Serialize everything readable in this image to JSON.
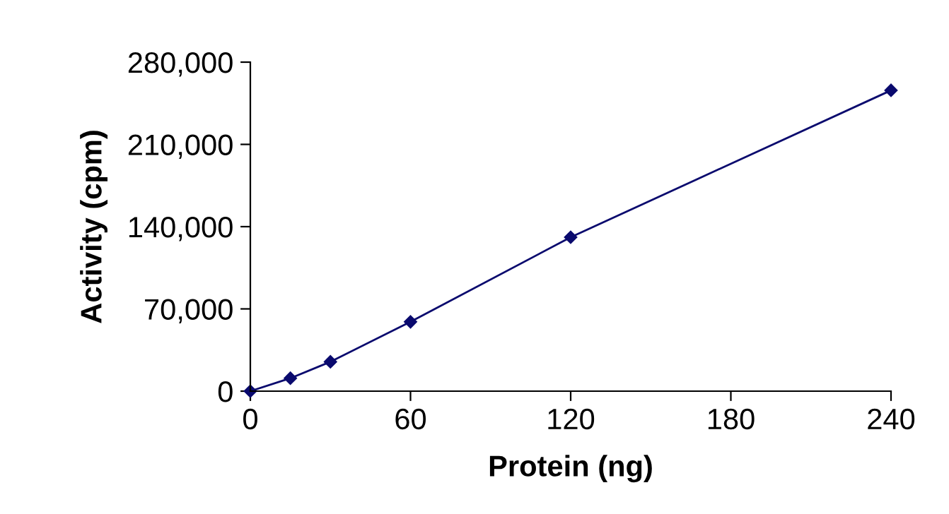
{
  "chart_data": {
    "type": "line",
    "xlabel": "Protein (ng)",
    "ylabel": "Activity (cpm)",
    "x": [
      0,
      15,
      30,
      60,
      120,
      240
    ],
    "series": [
      {
        "color": "#0a0a6e",
        "values": [
          0,
          11000,
          25000,
          59000,
          131000,
          256000
        ]
      }
    ],
    "xlim": [
      0,
      240
    ],
    "xticks": [
      0,
      60,
      120,
      180,
      240
    ],
    "ylim": [
      0,
      280000
    ],
    "yticks": [
      {
        "value": 0,
        "label": "0"
      },
      {
        "value": 70000,
        "label": "70,000"
      },
      {
        "value": 140000,
        "label": "140,000"
      },
      {
        "value": 210000,
        "label": "210,000"
      },
      {
        "value": 280000,
        "label": "280,000"
      }
    ],
    "marker": "diamond",
    "grid": false,
    "legend": false
  }
}
